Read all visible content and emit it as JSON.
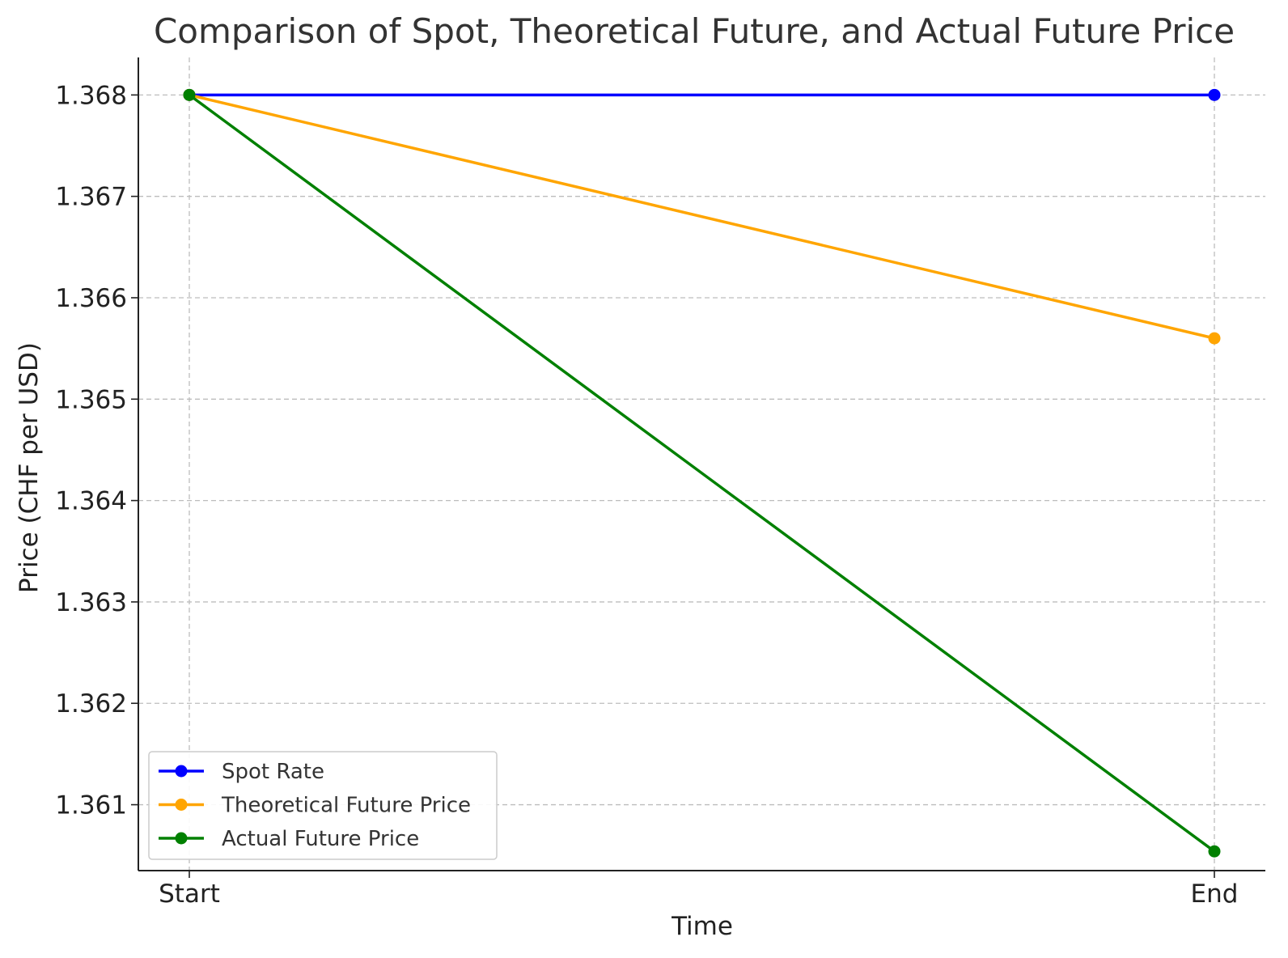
{
  "chart_data": {
    "type": "line",
    "title": "Comparison of Spot, Theoretical Future, and Actual Future Price",
    "xlabel": "Time",
    "ylabel": "Price (CHF per USD)",
    "categories": [
      "Start",
      "End"
    ],
    "ylim": [
      1.36035,
      1.36837
    ],
    "yticks": [
      1.361,
      1.362,
      1.363,
      1.364,
      1.365,
      1.366,
      1.367,
      1.368
    ],
    "ytick_labels": [
      "1.361",
      "1.362",
      "1.363",
      "1.364",
      "1.365",
      "1.366",
      "1.367",
      "1.368"
    ],
    "grid": true,
    "grid_style": "dashed",
    "legend_position": "lower-left",
    "series": [
      {
        "name": "Spot Rate",
        "values": [
          1.368,
          1.368
        ],
        "color": "#0000ff"
      },
      {
        "name": "Theoretical Future Price",
        "values": [
          1.368,
          1.3656
        ],
        "color": "#ffa500"
      },
      {
        "name": "Actual Future Price",
        "values": [
          1.368,
          1.36054
        ],
        "color": "#008000"
      }
    ]
  }
}
